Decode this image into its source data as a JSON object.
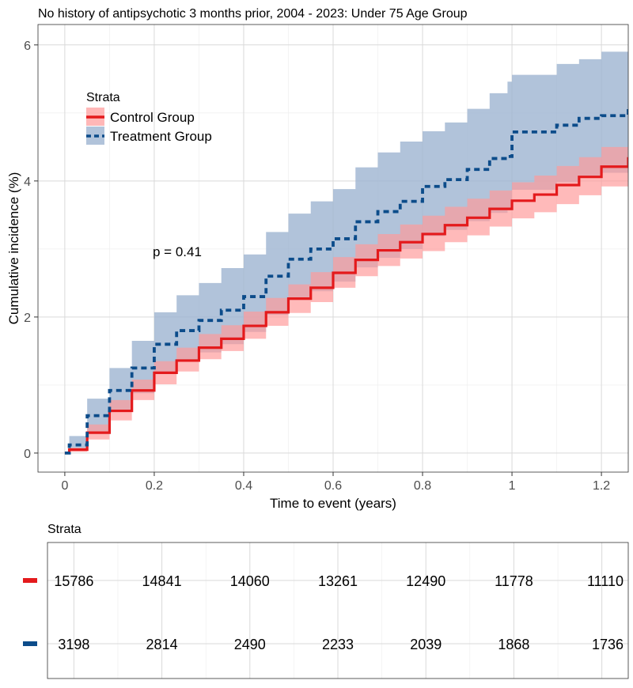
{
  "chart_data": [
    {
      "type": "line",
      "title": "No history of antipsychotic 3 months prior, 2004 - 2023: Under 75 Age Group",
      "xlabel": "Time to event (years)",
      "ylabel": "Cumulative incidence (%)",
      "xlim": [
        -0.06,
        1.26
      ],
      "ylim": [
        -0.28,
        6.3
      ],
      "x_ticks": [
        "0",
        "0.2",
        "0.4",
        "0.6",
        "0.8",
        "1",
        "1.2"
      ],
      "y_ticks": [
        "0",
        "2",
        "4",
        "6"
      ],
      "grid": true,
      "legend": {
        "title": "Strata",
        "position": "top-left",
        "entries": [
          "Control Group",
          "Treatment Group"
        ]
      },
      "annotations": [
        "p = 0.41"
      ],
      "series": [
        {
          "name": "Control Group",
          "color": "#e41a1c",
          "band_color": "#ff9999",
          "line_style": "solid",
          "x": [
            0.0,
            0.01,
            0.05,
            0.1,
            0.15,
            0.2,
            0.25,
            0.3,
            0.35,
            0.4,
            0.45,
            0.5,
            0.55,
            0.6,
            0.65,
            0.7,
            0.75,
            0.8,
            0.85,
            0.9,
            0.95,
            1.0,
            1.05,
            1.1,
            1.15,
            1.2,
            1.26
          ],
          "y": [
            0.0,
            0.05,
            0.3,
            0.62,
            0.92,
            1.18,
            1.36,
            1.55,
            1.68,
            1.87,
            2.07,
            2.27,
            2.43,
            2.65,
            2.84,
            2.98,
            3.1,
            3.22,
            3.35,
            3.46,
            3.59,
            3.71,
            3.8,
            3.94,
            4.06,
            4.21,
            4.35
          ],
          "lower": [
            0.0,
            0.02,
            0.2,
            0.48,
            0.78,
            1.01,
            1.2,
            1.38,
            1.5,
            1.68,
            1.87,
            2.06,
            2.22,
            2.43,
            2.6,
            2.75,
            2.86,
            2.97,
            3.1,
            3.2,
            3.33,
            3.45,
            3.54,
            3.66,
            3.79,
            3.92,
            4.05
          ],
          "upper": [
            0.0,
            0.08,
            0.42,
            0.78,
            1.08,
            1.35,
            1.55,
            1.75,
            1.88,
            2.08,
            2.28,
            2.48,
            2.66,
            2.88,
            3.07,
            3.22,
            3.36,
            3.49,
            3.62,
            3.74,
            3.86,
            3.98,
            4.08,
            4.22,
            4.35,
            4.5,
            4.66
          ]
        },
        {
          "name": "Treatment Group",
          "color": "#0c4c8a",
          "band_color": "#9eb4d1",
          "line_style": "dashed",
          "x": [
            0.0,
            0.01,
            0.05,
            0.1,
            0.15,
            0.2,
            0.25,
            0.3,
            0.35,
            0.4,
            0.45,
            0.5,
            0.55,
            0.6,
            0.65,
            0.7,
            0.75,
            0.8,
            0.85,
            0.9,
            0.95,
            0.99,
            1.0,
            1.05,
            1.1,
            1.15,
            1.2,
            1.26
          ],
          "y": [
            0.0,
            0.12,
            0.55,
            0.92,
            1.25,
            1.6,
            1.8,
            1.95,
            2.1,
            2.3,
            2.6,
            2.85,
            3.0,
            3.15,
            3.4,
            3.55,
            3.7,
            3.92,
            4.02,
            4.17,
            4.33,
            4.36,
            4.72,
            4.72,
            4.82,
            4.92,
            4.96,
            5.08
          ],
          "lower": [
            0.0,
            0.05,
            0.32,
            0.62,
            0.88,
            1.18,
            1.35,
            1.48,
            1.6,
            1.78,
            2.03,
            2.25,
            2.38,
            2.52,
            2.73,
            2.87,
            3.0,
            3.19,
            3.28,
            3.41,
            3.53,
            3.57,
            3.87,
            3.87,
            3.98,
            4.07,
            4.12,
            4.22
          ],
          "upper": [
            0.0,
            0.25,
            0.8,
            1.25,
            1.65,
            2.07,
            2.32,
            2.5,
            2.72,
            2.92,
            3.25,
            3.52,
            3.7,
            3.88,
            4.2,
            4.42,
            4.58,
            4.73,
            4.86,
            5.06,
            5.29,
            5.46,
            5.56,
            5.56,
            5.72,
            5.79,
            5.9,
            5.95
          ]
        }
      ]
    },
    {
      "type": "table",
      "title": "Strata",
      "time_points": [
        0,
        0.2,
        0.4,
        0.6,
        0.8,
        1.0,
        1.2
      ],
      "rows": [
        {
          "name": "Control Group",
          "color": "#e41a1c",
          "values": [
            "15786",
            "14841",
            "14060",
            "13261",
            "12490",
            "11778",
            "11110"
          ]
        },
        {
          "name": "Treatment Group",
          "color": "#0c4c8a",
          "values": [
            "3198",
            "2814",
            "2490",
            "2233",
            "2039",
            "1868",
            "1736"
          ]
        }
      ]
    }
  ]
}
